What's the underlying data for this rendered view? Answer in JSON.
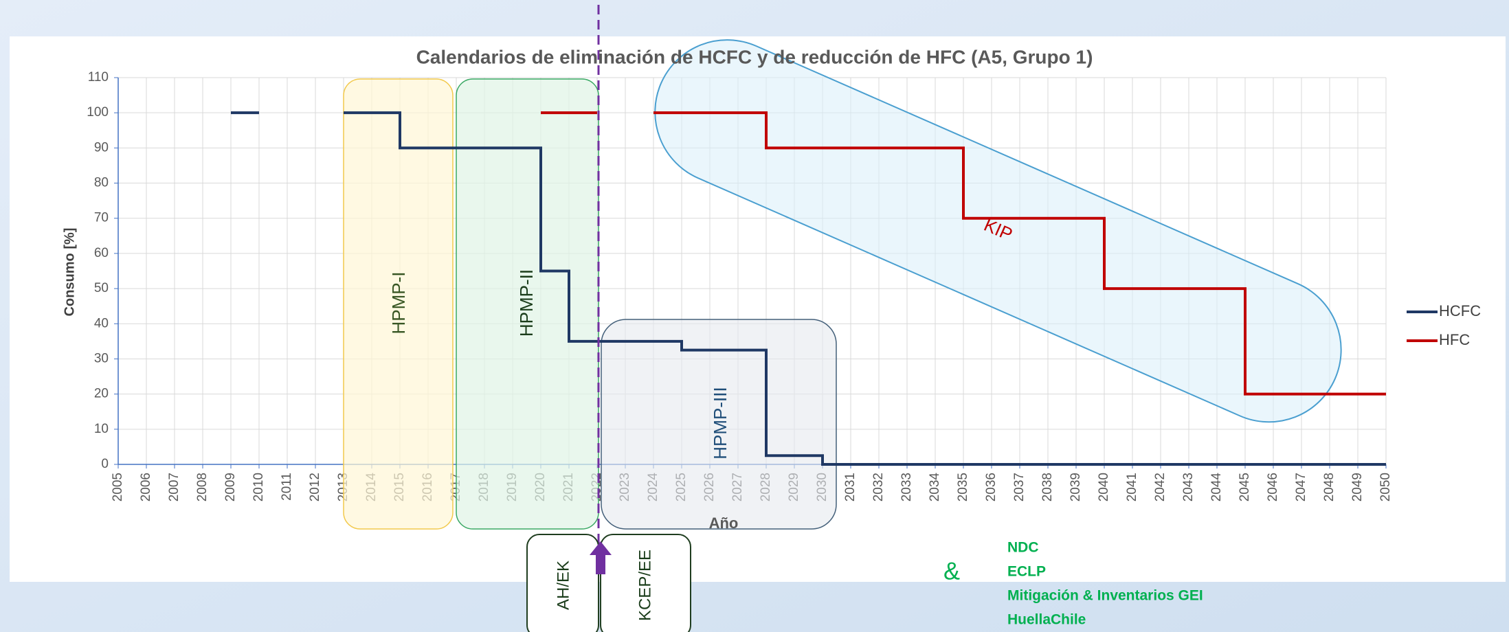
{
  "chart_data": {
    "type": "line",
    "title": "Calendarios de eliminación de HCFC y de reducción de HFC (A5, Grupo 1)",
    "x_label": "Año",
    "y_label": "Consumo [%]",
    "xlim": [
      2005,
      2050
    ],
    "xticks": [
      2005,
      2006,
      2007,
      2008,
      2009,
      2010,
      2011,
      2012,
      2013,
      2014,
      2015,
      2016,
      2017,
      2018,
      2019,
      2020,
      2021,
      2022,
      2023,
      2024,
      2025,
      2026,
      2027,
      2028,
      2029,
      2030,
      2031,
      2032,
      2033,
      2034,
      2035,
      2036,
      2037,
      2038,
      2039,
      2040,
      2041,
      2042,
      2043,
      2044,
      2045,
      2046,
      2047,
      2048,
      2049,
      2050
    ],
    "ylim": [
      0,
      110
    ],
    "yticks": [
      0,
      10,
      20,
      30,
      40,
      50,
      60,
      70,
      80,
      90,
      100,
      110
    ],
    "grid": true,
    "legend": "right",
    "series": [
      {
        "name": "HCFC",
        "color": "#1f3864",
        "x": [
          2009,
          2010,
          2011,
          2013,
          2015,
          2015,
          2020,
          2020,
          2021,
          2021,
          2025,
          2025,
          2028,
          2028,
          2030,
          2030,
          2050
        ],
        "values": [
          100,
          100,
          null,
          100,
          100,
          90,
          90,
          55,
          55,
          35,
          35,
          32.5,
          32.5,
          2.5,
          2.5,
          0,
          0
        ]
      },
      {
        "name": "HFC",
        "color": "#c00000",
        "x": [
          2020,
          2022,
          2023,
          2024,
          2028,
          2028,
          2035,
          2035,
          2040,
          2040,
          2045,
          2045,
          2050
        ],
        "values": [
          100,
          100,
          null,
          100,
          100,
          90,
          90,
          70,
          70,
          50,
          50,
          20,
          20
        ]
      }
    ],
    "annotations": [
      "HPMP-I",
      "HPMP-II",
      "HPMP-III",
      "KIP"
    ],
    "notes": [
      "AH/EK",
      "KCEP/EE",
      "&"
    ],
    "programs": [
      "NDC",
      "ECLP",
      "Mitigación & Inventarios GEI",
      "HuellaChile"
    ]
  }
}
